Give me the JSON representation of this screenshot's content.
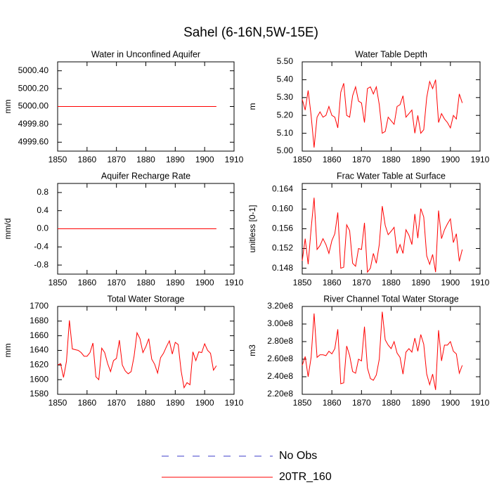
{
  "title": "Sahel (6-16N,5W-15E)",
  "legend": [
    {
      "name": "No Obs",
      "color": "#3c3cc8",
      "dashed": true
    },
    {
      "name": "20TR_160",
      "color": "#ff0000",
      "dashed": false
    }
  ],
  "chart_data": [
    {
      "type": "line",
      "title": "Water in Unconfined Aquifer",
      "y_label": "mm",
      "x": [
        1850,
        1851,
        1852,
        1853,
        1854,
        1855,
        1856,
        1857,
        1858,
        1859,
        1860,
        1861,
        1862,
        1863,
        1864,
        1865,
        1866,
        1867,
        1868,
        1869,
        1870,
        1871,
        1872,
        1873,
        1874,
        1875,
        1876,
        1877,
        1878,
        1879,
        1880,
        1881,
        1882,
        1883,
        1884,
        1885,
        1886,
        1887,
        1888,
        1889,
        1890,
        1891,
        1892,
        1893,
        1894,
        1895,
        1896,
        1897,
        1898,
        1899,
        1900,
        1901,
        1902,
        1903,
        1904
      ],
      "series": [
        {
          "color": "#ff0000",
          "values": [
            5000,
            5000,
            5000,
            5000,
            5000,
            5000,
            5000,
            5000,
            5000,
            5000,
            5000,
            5000,
            5000,
            5000,
            5000,
            5000,
            5000,
            5000,
            5000,
            5000,
            5000,
            5000,
            5000,
            5000,
            5000,
            5000,
            5000,
            5000,
            5000,
            5000,
            5000,
            5000,
            5000,
            5000,
            5000,
            5000,
            5000,
            5000,
            5000,
            5000,
            5000,
            5000,
            5000,
            5000,
            5000,
            5000,
            5000,
            5000,
            5000,
            5000,
            5000,
            5000,
            5000,
            5000,
            5000
          ]
        }
      ],
      "xlim": [
        1850,
        1910
      ],
      "xticks": [
        1850,
        1860,
        1870,
        1880,
        1890,
        1900,
        1910
      ],
      "ylim": [
        4999.5,
        5000.5
      ],
      "yticks": [
        {
          "value": 4999.6,
          "label": "4999.60"
        },
        {
          "value": 4999.8,
          "label": "4999.80"
        },
        {
          "value": 5000,
          "label": "5000.00"
        },
        {
          "value": 5000.2,
          "label": "5000.20"
        },
        {
          "value": 5000.4,
          "label": "5000.40"
        }
      ]
    },
    {
      "type": "line",
      "title": "Water Table Depth",
      "y_label": "m",
      "x": [
        1850,
        1851,
        1852,
        1853,
        1854,
        1855,
        1856,
        1857,
        1858,
        1859,
        1860,
        1861,
        1862,
        1863,
        1864,
        1865,
        1866,
        1867,
        1868,
        1869,
        1870,
        1871,
        1872,
        1873,
        1874,
        1875,
        1876,
        1877,
        1878,
        1879,
        1880,
        1881,
        1882,
        1883,
        1884,
        1885,
        1886,
        1887,
        1888,
        1889,
        1890,
        1891,
        1892,
        1893,
        1894,
        1895,
        1896,
        1897,
        1898,
        1899,
        1900,
        1901,
        1902,
        1903,
        1904
      ],
      "series": [
        {
          "color": "#ff0000",
          "values": [
            5.29,
            5.23,
            5.34,
            5.2,
            5.02,
            5.19,
            5.22,
            5.19,
            5.2,
            5.25,
            5.2,
            5.19,
            5.13,
            5.33,
            5.38,
            5.2,
            5.19,
            5.31,
            5.36,
            5.28,
            5.27,
            5.16,
            5.35,
            5.36,
            5.32,
            5.36,
            5.26,
            5.1,
            5.11,
            5.19,
            5.17,
            5.15,
            5.25,
            5.26,
            5.31,
            5.19,
            5.21,
            5.23,
            5.1,
            5.2,
            5.1,
            5.12,
            5.3,
            5.39,
            5.35,
            5.4,
            5.16,
            5.21,
            5.18,
            5.16,
            5.13,
            5.2,
            5.18,
            5.32,
            5.27
          ]
        }
      ],
      "xlim": [
        1850,
        1910
      ],
      "xticks": [
        1850,
        1860,
        1870,
        1880,
        1890,
        1900,
        1910
      ],
      "ylim": [
        5.0,
        5.5
      ],
      "yticks": [
        {
          "value": 5.0,
          "label": "5.00"
        },
        {
          "value": 5.1,
          "label": "5.10"
        },
        {
          "value": 5.2,
          "label": "5.20"
        },
        {
          "value": 5.3,
          "label": "5.30"
        },
        {
          "value": 5.4,
          "label": "5.40"
        },
        {
          "value": 5.5,
          "label": "5.50"
        }
      ]
    },
    {
      "type": "line",
      "title": "Aquifer Recharge Rate",
      "y_label": "mm/d",
      "x": [
        1850,
        1851,
        1852,
        1853,
        1854,
        1855,
        1856,
        1857,
        1858,
        1859,
        1860,
        1861,
        1862,
        1863,
        1864,
        1865,
        1866,
        1867,
        1868,
        1869,
        1870,
        1871,
        1872,
        1873,
        1874,
        1875,
        1876,
        1877,
        1878,
        1879,
        1880,
        1881,
        1882,
        1883,
        1884,
        1885,
        1886,
        1887,
        1888,
        1889,
        1890,
        1891,
        1892,
        1893,
        1894,
        1895,
        1896,
        1897,
        1898,
        1899,
        1900,
        1901,
        1902,
        1903,
        1904
      ],
      "series": [
        {
          "color": "#ff0000",
          "values": [
            0,
            0,
            0,
            0,
            0,
            0,
            0,
            0,
            0,
            0,
            0,
            0,
            0,
            0,
            0,
            0,
            0,
            0,
            0,
            0,
            0,
            0,
            0,
            0,
            0,
            0,
            0,
            0,
            0,
            0,
            0,
            0,
            0,
            0,
            0,
            0,
            0,
            0,
            0,
            0,
            0,
            0,
            0,
            0,
            0,
            0,
            0,
            0,
            0,
            0,
            0,
            0,
            0,
            0,
            0
          ]
        }
      ],
      "xlim": [
        1850,
        1910
      ],
      "xticks": [
        1850,
        1860,
        1870,
        1880,
        1890,
        1900,
        1910
      ],
      "ylim": [
        -1,
        1
      ],
      "yticks": [
        -0.8,
        -0.4,
        {
          "value": 0,
          "label": "0.0"
        },
        0.4,
        0.8
      ]
    },
    {
      "type": "line",
      "title": "Frac Water Table at Surface",
      "y_label": "unitless [0-1]",
      "x": [
        1850,
        1851,
        1852,
        1853,
        1854,
        1855,
        1856,
        1857,
        1858,
        1859,
        1860,
        1861,
        1862,
        1863,
        1864,
        1865,
        1866,
        1867,
        1868,
        1869,
        1870,
        1871,
        1872,
        1873,
        1874,
        1875,
        1876,
        1877,
        1878,
        1879,
        1880,
        1881,
        1882,
        1883,
        1884,
        1885,
        1886,
        1887,
        1888,
        1889,
        1890,
        1891,
        1892,
        1893,
        1894,
        1895,
        1896,
        1897,
        1898,
        1899,
        1900,
        1901,
        1902,
        1903,
        1904
      ],
      "series": [
        {
          "color": "#ff0000",
          "values": [
            0.1495,
            0.154,
            0.1488,
            0.156,
            0.1623,
            0.1518,
            0.1526,
            0.154,
            0.1528,
            0.151,
            0.1536,
            0.155,
            0.1593,
            0.148,
            0.1482,
            0.1568,
            0.1556,
            0.149,
            0.1484,
            0.152,
            0.1518,
            0.1572,
            0.1472,
            0.148,
            0.151,
            0.149,
            0.1528,
            0.1606,
            0.1567,
            0.1548,
            0.1555,
            0.1563,
            0.151,
            0.1528,
            0.151,
            0.1558,
            0.1547,
            0.1528,
            0.159,
            0.1541,
            0.1601,
            0.1584,
            0.1505,
            0.1488,
            0.1508,
            0.1472,
            0.1597,
            0.154,
            0.1558,
            0.157,
            0.158,
            0.1532,
            0.155,
            0.1494,
            0.1518
          ]
        }
      ],
      "xlim": [
        1850,
        1910
      ],
      "xticks": [
        1850,
        1860,
        1870,
        1880,
        1890,
        1900,
        1910
      ],
      "ylim": [
        0.1468,
        0.1652
      ],
      "yticks": [
        0.148,
        0.152,
        0.156,
        {
          "value": 0.16,
          "label": "0.160"
        },
        0.164
      ]
    },
    {
      "type": "line",
      "title": "Total Water Storage",
      "y_label": "mm",
      "x": [
        1850,
        1851,
        1852,
        1853,
        1854,
        1855,
        1856,
        1857,
        1858,
        1859,
        1860,
        1861,
        1862,
        1863,
        1864,
        1865,
        1866,
        1867,
        1868,
        1869,
        1870,
        1871,
        1872,
        1873,
        1874,
        1875,
        1876,
        1877,
        1878,
        1879,
        1880,
        1881,
        1882,
        1883,
        1884,
        1885,
        1886,
        1887,
        1888,
        1889,
        1890,
        1891,
        1892,
        1893,
        1894,
        1895,
        1896,
        1897,
        1898,
        1899,
        1900,
        1901,
        1902,
        1903,
        1904
      ],
      "series": [
        {
          "color": "#ff0000",
          "values": [
            1620,
            1622,
            1603,
            1625,
            1681,
            1642,
            1641,
            1640,
            1637,
            1632,
            1632,
            1637,
            1650,
            1604,
            1600,
            1643,
            1637,
            1622,
            1611,
            1626,
            1629,
            1654,
            1620,
            1612,
            1608,
            1611,
            1632,
            1664,
            1656,
            1637,
            1645,
            1656,
            1628,
            1621,
            1609,
            1630,
            1636,
            1645,
            1653,
            1635,
            1651,
            1648,
            1612,
            1589,
            1596,
            1593,
            1638,
            1626,
            1638,
            1637,
            1649,
            1640,
            1636,
            1613,
            1619
          ]
        }
      ],
      "xlim": [
        1850,
        1910
      ],
      "xticks": [
        1850,
        1860,
        1870,
        1880,
        1890,
        1900,
        1910
      ],
      "ylim": [
        1580,
        1700
      ],
      "yticks": [
        1580,
        1600,
        1620,
        1640,
        1660,
        1680,
        1700
      ]
    },
    {
      "type": "line",
      "title": "River Channel Total Water Storage",
      "y_label": "m3",
      "x": [
        1850,
        1851,
        1852,
        1853,
        1854,
        1855,
        1856,
        1857,
        1858,
        1859,
        1860,
        1861,
        1862,
        1863,
        1864,
        1865,
        1866,
        1867,
        1868,
        1869,
        1870,
        1871,
        1872,
        1873,
        1874,
        1875,
        1876,
        1877,
        1878,
        1879,
        1880,
        1881,
        1882,
        1883,
        1884,
        1885,
        1886,
        1887,
        1888,
        1889,
        1890,
        1891,
        1892,
        1893,
        1894,
        1895,
        1896,
        1897,
        1898,
        1899,
        1900,
        1901,
        1902,
        1903,
        1904
      ],
      "series": [
        {
          "color": "#ff0000",
          "values": [
            253000000,
            263000000,
            240000000,
            262000000,
            312000000,
            262000000,
            265000000,
            265000000,
            264000000,
            269000000,
            266000000,
            272000000,
            294000000,
            232000000,
            233000000,
            275000000,
            264000000,
            246000000,
            244000000,
            260000000,
            258000000,
            297000000,
            250000000,
            238000000,
            236000000,
            242000000,
            260000000,
            314000000,
            282000000,
            276000000,
            272000000,
            280000000,
            267000000,
            262000000,
            243000000,
            268000000,
            272000000,
            268000000,
            284000000,
            269000000,
            288000000,
            277000000,
            243000000,
            231000000,
            243000000,
            225000000,
            293000000,
            258000000,
            276000000,
            276000000,
            280000000,
            269000000,
            266000000,
            244000000,
            253000000
          ]
        }
      ],
      "xlim": [
        1850,
        1910
      ],
      "xticks": [
        1850,
        1860,
        1870,
        1880,
        1890,
        1900,
        1910
      ],
      "ylim": [
        220000000,
        320000000
      ],
      "yticks": [
        {
          "value": 220000000,
          "label": "2.20e8"
        },
        {
          "value": 240000000,
          "label": "2.40e8"
        },
        {
          "value": 260000000,
          "label": "2.60e8"
        },
        {
          "value": 280000000,
          "label": "2.80e8"
        },
        {
          "value": 300000000,
          "label": "3.00e8"
        },
        {
          "value": 320000000,
          "label": "3.20e8"
        }
      ]
    }
  ]
}
